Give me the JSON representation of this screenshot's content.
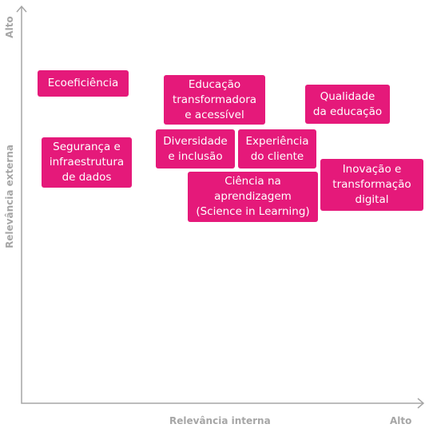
{
  "axes": {
    "y_label": "Relevância externa",
    "y_high": "Alto",
    "x_label": "Relevância interna",
    "x_high": "Alto"
  },
  "nodes": [
    {
      "lines": [
        "Ecoeficiência"
      ]
    },
    {
      "lines": [
        "Educação",
        "transformadora",
        "e acessível"
      ]
    },
    {
      "lines": [
        "Qualidade",
        "da educação"
      ]
    },
    {
      "lines": [
        "Segurança e",
        "infraestrutura",
        "de dados"
      ]
    },
    {
      "lines": [
        "Diversidade",
        "e inclusão"
      ]
    },
    {
      "lines": [
        "Experiência",
        "do cliente"
      ]
    },
    {
      "lines": [
        "Inovação e",
        "transformação",
        "digital"
      ]
    },
    {
      "lines": [
        "Ciência na",
        "aprendizagem",
        "(Science in Learning)"
      ]
    }
  ]
}
